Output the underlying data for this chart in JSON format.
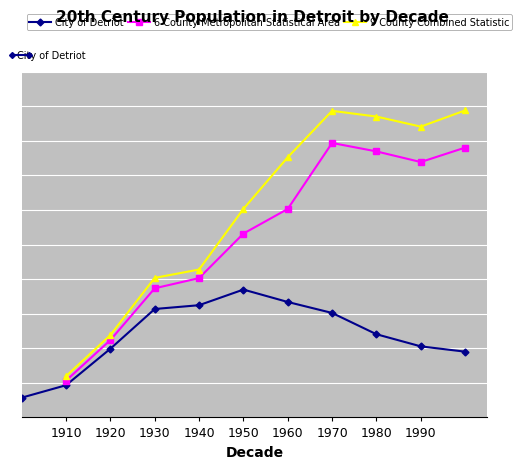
{
  "title": "20th Century Population in Detroit by Decade",
  "xlabel": "Decade",
  "ylabel": "",
  "decades": [
    1900,
    1910,
    1920,
    1930,
    1940,
    1950,
    1960,
    1970,
    1980,
    1990,
    2000
  ],
  "detroit": [
    285704,
    465766,
    993678,
    1568662,
    1623452,
    1849568,
    1670144,
    1511482,
    1203339,
    1027974,
    951270
  ],
  "metro6": [
    null,
    531915,
    1118767,
    1868091,
    2015623,
    2659398,
    3016197,
    3970584,
    3848571,
    3694666,
    3903377
  ],
  "metro9": [
    null,
    596986,
    1191499,
    2018893,
    2139461,
    3016197,
    3764015,
    4435270,
    4352762,
    4207017,
    4441551
  ],
  "detroit_color": "#00008B",
  "metro6_color": "#FF00FF",
  "metro9_color": "#FFFF00",
  "background_color": "#C0C0C0",
  "legend_detroit": "City of Detriot",
  "legend_metro6": "6 County Metropolitan Statistical Area",
  "legend_metro9": "9 County Combined Statistic",
  "ylim": [
    0,
    5000000
  ],
  "xlim": [
    1900,
    2005
  ],
  "xticks": [
    1910,
    1920,
    1930,
    1940,
    1950,
    1960,
    1970,
    1980,
    1990
  ],
  "xtick_labels": [
    "1910",
    "1920",
    "1930",
    "1940",
    "1950",
    "1960",
    "1970",
    "1980",
    "1990"
  ]
}
